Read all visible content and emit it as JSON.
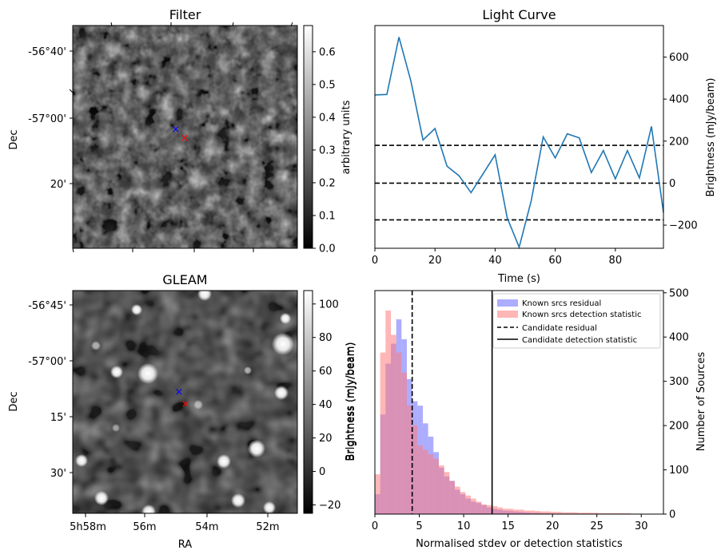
{
  "filter_panel": {
    "title": "Filter",
    "ylabel": "Dec",
    "yticks": [
      "-56°40'",
      "-57°00'",
      "20'"
    ],
    "colorbar_label": "arbitrary units",
    "colorbar_ticks": [
      "0.0",
      "0.1",
      "0.2",
      "0.3",
      "0.4",
      "0.5",
      "0.6"
    ],
    "colorbar_range": [
      0,
      0.68
    ],
    "markers": [
      {
        "color": "#0000ff",
        "symbol": "×"
      },
      {
        "color": "#ff0000",
        "symbol": "×"
      }
    ]
  },
  "gleam_panel": {
    "title": "GLEAM",
    "xlabel": "RA",
    "ylabel": "Dec",
    "xticks": [
      "5h58m",
      "56m",
      "54m",
      "52m"
    ],
    "yticks": [
      "-56°45'",
      "-57°00'",
      "15'",
      "30'"
    ],
    "colorbar_label": "Brightness (mJy/beam)",
    "colorbar_ticks": [
      "−20",
      "0",
      "20",
      "40",
      "60",
      "80",
      "100"
    ],
    "colorbar_range": [
      -25,
      108
    ],
    "markers": [
      {
        "color": "#0000ff",
        "symbol": "×"
      },
      {
        "color": "#ff0000",
        "symbol": "×"
      }
    ]
  },
  "chart_data": [
    {
      "type": "line",
      "title": "Light Curve",
      "xlabel": "Time (s)",
      "ylabel": "Brightness (mJy/beam)",
      "xlim": [
        0,
        96
      ],
      "ylim": [
        -310,
        750
      ],
      "xticks": [
        0,
        20,
        40,
        60,
        80
      ],
      "yticks": [
        -200,
        0,
        200,
        400,
        600
      ],
      "ytick_labels": [
        "−200",
        "0",
        "200",
        "400",
        "600"
      ],
      "series_color": "#1f77b4",
      "x": [
        0,
        4,
        8,
        12,
        16,
        20,
        24,
        28,
        32,
        36,
        40,
        44,
        48,
        52,
        56,
        60,
        64,
        68,
        72,
        76,
        80,
        84,
        88,
        92,
        96
      ],
      "y": [
        420,
        422,
        695,
        485,
        205,
        260,
        80,
        35,
        -45,
        45,
        135,
        -165,
        -305,
        -85,
        220,
        120,
        235,
        215,
        50,
        155,
        20,
        155,
        25,
        270,
        -140
      ],
      "hlines": [
        180,
        0,
        -175
      ],
      "hline_style": "dashed"
    },
    {
      "type": "bar",
      "xlabel": "Normalised stdev or detection statistics",
      "ylabel_left": "Brightness (mJy/beam)",
      "ylabel_right": "Number of Sources",
      "xlim": [
        0,
        32.5
      ],
      "ylim": [
        0,
        505
      ],
      "xticks": [
        0,
        5,
        10,
        15,
        20,
        25,
        30
      ],
      "yticks": [
        0,
        100,
        200,
        300,
        400,
        500
      ],
      "bin_width": 0.6,
      "bin_start": 0.0,
      "series": [
        {
          "name": "Known srcs residual",
          "color": "#6a6aff",
          "values": [
            45,
            225,
            340,
            385,
            440,
            395,
            305,
            255,
            245,
            205,
            175,
            140,
            105,
            85,
            75,
            55,
            45,
            35,
            28,
            25,
            20,
            15,
            12,
            10,
            8,
            7,
            6,
            5,
            4,
            3,
            3,
            2,
            2,
            1,
            1
          ]
        },
        {
          "name": "Known srcs detection statistic",
          "color": "#ff7a7a",
          "values": [
            90,
            365,
            460,
            405,
            365,
            320,
            245,
            200,
            155,
            145,
            135,
            125,
            110,
            95,
            75,
            62,
            50,
            42,
            35,
            28,
            22,
            20,
            18,
            15,
            12,
            12,
            10,
            10,
            8,
            8,
            7,
            6,
            6,
            5,
            5,
            4,
            4,
            4,
            3,
            3,
            3,
            3,
            2,
            2,
            2,
            2,
            2,
            2,
            1,
            1
          ]
        }
      ],
      "vlines": [
        {
          "name": "Candidate residual",
          "x": 4.2,
          "style": "dashed"
        },
        {
          "name": "Candidate detection statistic",
          "x": 13.2,
          "style": "solid"
        }
      ],
      "legend_position": "top-right"
    }
  ]
}
